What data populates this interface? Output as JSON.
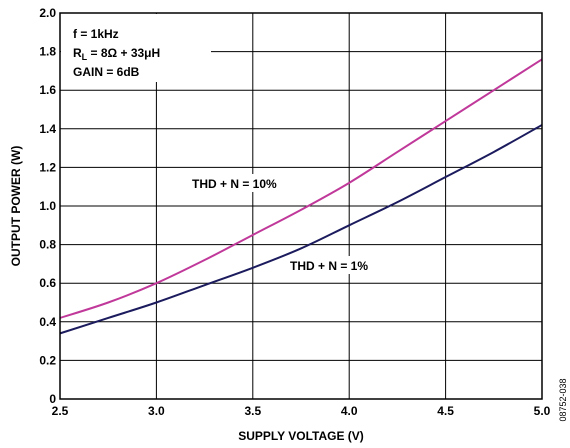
{
  "chart_data": {
    "type": "line",
    "xlabel": "SUPPLY VOLTAGE (V)",
    "ylabel": "OUTPUT POWER (W)",
    "xlim": [
      2.5,
      5.0
    ],
    "ylim": [
      0,
      2.0
    ],
    "x_ticks": [
      "2.5",
      "3.0",
      "3.5",
      "4.0",
      "4.5",
      "5.0"
    ],
    "y_ticks": [
      "0",
      "0.2",
      "0.4",
      "0.6",
      "0.8",
      "1.0",
      "1.2",
      "1.4",
      "1.6",
      "1.8",
      "2.0"
    ],
    "grid": true,
    "conditions": {
      "line1": "f = 1kHz",
      "line2_main": "R",
      "line2_sub": "L",
      "line2_rest": " = 8Ω + 33μH",
      "line3": "GAIN = 6dB"
    },
    "series": [
      {
        "name": "THD + N = 10%",
        "color": "#c0399a",
        "x": [
          2.5,
          2.75,
          3.0,
          3.25,
          3.5,
          3.75,
          4.0,
          4.25,
          4.5,
          4.75,
          5.0
        ],
        "y": [
          0.42,
          0.5,
          0.6,
          0.72,
          0.85,
          0.98,
          1.12,
          1.28,
          1.44,
          1.6,
          1.76
        ]
      },
      {
        "name": "THD + N = 1%",
        "color": "#1b1b5e",
        "x": [
          2.5,
          2.75,
          3.0,
          3.25,
          3.5,
          3.75,
          4.0,
          4.25,
          4.5,
          4.75,
          5.0
        ],
        "y": [
          0.34,
          0.42,
          0.5,
          0.59,
          0.68,
          0.78,
          0.9,
          1.02,
          1.15,
          1.28,
          1.42
        ]
      }
    ],
    "figure_id": "08752-038"
  }
}
